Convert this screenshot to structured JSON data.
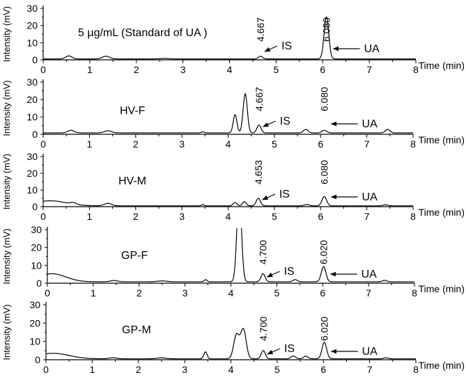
{
  "chart_data": [
    {
      "type": "line",
      "label": "5 µg/mL   (Standard of UA )",
      "ylabel": "Intensity (mV)",
      "xlabel": "Time (min)",
      "xlim": [
        0,
        8
      ],
      "ylim": [
        0,
        30
      ],
      "x_ticks": [
        "0",
        "1",
        "2",
        "3",
        "4",
        "5",
        "6",
        "7",
        "8"
      ],
      "y_ticks": [
        "0",
        "10",
        "20",
        "30"
      ],
      "peak_annotations": [
        {
          "text": "4.667",
          "x": 4.667
        },
        {
          "text": "6.080",
          "x": 6.08
        }
      ],
      "arrow_labels": [
        {
          "text": "IS",
          "x": 4.667
        },
        {
          "text": "UA",
          "x": 6.08
        }
      ],
      "baseline": 0.5,
      "peaks": [
        {
          "x": 0.55,
          "y": 1.8,
          "w": 0.07
        },
        {
          "x": 1.35,
          "y": 1.6,
          "w": 0.08
        },
        {
          "x": 2.6,
          "y": 0.3,
          "w": 0.1
        },
        {
          "x": 4.667,
          "y": 1.6,
          "w": 0.045
        },
        {
          "x": 6.08,
          "y": 24.5,
          "w": 0.05
        }
      ]
    },
    {
      "type": "line",
      "label": "HV-F",
      "ylabel": "Intensity (mV)",
      "xlabel": "Time (min)",
      "xlim": [
        0,
        8
      ],
      "ylim": [
        0,
        30
      ],
      "x_ticks": [
        "0",
        "1",
        "2",
        "3",
        "4",
        "5",
        "6",
        "7",
        "8"
      ],
      "y_ticks": [
        "0",
        "10",
        "20",
        "30"
      ],
      "peak_annotations": [
        {
          "text": "4.667",
          "x": 4.667
        },
        {
          "text": "6.080",
          "x": 6.08
        }
      ],
      "arrow_labels": [
        {
          "text": "IS",
          "x": 4.667
        },
        {
          "text": "UA",
          "x": 6.08
        }
      ],
      "baseline": 0.8,
      "peaks": [
        {
          "x": 0.6,
          "y": 1.5,
          "w": 0.07
        },
        {
          "x": 1.4,
          "y": 1.2,
          "w": 0.08
        },
        {
          "x": 3.45,
          "y": 0.6,
          "w": 0.03
        },
        {
          "x": 4.15,
          "y": 10.5,
          "w": 0.04
        },
        {
          "x": 4.37,
          "y": 22.5,
          "w": 0.045
        },
        {
          "x": 4.667,
          "y": 4.5,
          "w": 0.045
        },
        {
          "x": 5.68,
          "y": 2.0,
          "w": 0.05
        },
        {
          "x": 6.08,
          "y": 1.5,
          "w": 0.05
        },
        {
          "x": 7.45,
          "y": 2.0,
          "w": 0.05
        }
      ]
    },
    {
      "type": "line",
      "label": "HV-M",
      "ylabel": "Intensity (mV)",
      "xlabel": "Time (min)",
      "xlim": [
        0,
        8
      ],
      "ylim": [
        0,
        30
      ],
      "x_ticks": [
        "0",
        "1",
        "2",
        "3",
        "4",
        "5",
        "6",
        "7",
        "8"
      ],
      "y_ticks": [
        "0",
        "10",
        "20",
        "30"
      ],
      "peak_annotations": [
        {
          "text": "4.653",
          "x": 4.653
        },
        {
          "text": "6.080",
          "x": 6.08
        }
      ],
      "arrow_labels": [
        {
          "text": "IS",
          "x": 4.653
        },
        {
          "text": "UA",
          "x": 6.08
        }
      ],
      "baseline": 0.5,
      "peaks": [
        {
          "x": 0.15,
          "y": 3.0,
          "w": 0.35
        },
        {
          "x": 0.65,
          "y": 1.0,
          "w": 0.06
        },
        {
          "x": 1.4,
          "y": 1.5,
          "w": 0.08
        },
        {
          "x": 3.45,
          "y": 0.7,
          "w": 0.03
        },
        {
          "x": 4.15,
          "y": 2.0,
          "w": 0.04
        },
        {
          "x": 4.35,
          "y": 2.5,
          "w": 0.04
        },
        {
          "x": 4.653,
          "y": 4.5,
          "w": 0.045
        },
        {
          "x": 5.7,
          "y": 0.8,
          "w": 0.05
        },
        {
          "x": 6.08,
          "y": 5.5,
          "w": 0.05
        },
        {
          "x": 7.4,
          "y": 0.6,
          "w": 0.05
        }
      ]
    },
    {
      "type": "line",
      "label": "GP-F",
      "ylabel": "Intensity (mV)",
      "xlabel": "Time (min)",
      "xlim": [
        0,
        8
      ],
      "ylim": [
        0,
        30
      ],
      "x_ticks": [
        "0",
        "1",
        "2",
        "3",
        "4",
        "5",
        "6",
        "7",
        "8"
      ],
      "y_ticks": [
        "0",
        "10",
        "20",
        "30"
      ],
      "peak_annotations": [
        {
          "text": "4.700",
          "x": 4.7
        },
        {
          "text": "6.020",
          "x": 6.02
        }
      ],
      "arrow_labels": [
        {
          "text": "IS",
          "x": 4.7
        },
        {
          "text": "UA",
          "x": 6.02
        }
      ],
      "baseline": 0.8,
      "peaks": [
        {
          "x": 0.1,
          "y": 4.5,
          "w": 0.3
        },
        {
          "x": 1.45,
          "y": 0.7,
          "w": 0.08
        },
        {
          "x": 2.5,
          "y": 0.5,
          "w": 0.1
        },
        {
          "x": 3.45,
          "y": 1.2,
          "w": 0.03
        },
        {
          "x": 4.18,
          "y": 50,
          "w": 0.05
        },
        {
          "x": 4.7,
          "y": 4.5,
          "w": 0.045
        },
        {
          "x": 5.4,
          "y": 1.2,
          "w": 0.05
        },
        {
          "x": 6.02,
          "y": 8.5,
          "w": 0.05
        },
        {
          "x": 7.35,
          "y": 0.8,
          "w": 0.05
        }
      ]
    },
    {
      "type": "line",
      "label": "GP-M",
      "ylabel": "Intensity (mV)",
      "xlabel": "Time (min)",
      "xlim": [
        0,
        8
      ],
      "ylim": [
        0,
        30
      ],
      "x_ticks": [
        "0",
        "1",
        "2",
        "3",
        "4",
        "5",
        "6",
        "7",
        "8"
      ],
      "y_ticks": [
        "0",
        "10",
        "20",
        "30"
      ],
      "peak_annotations": [
        {
          "text": "4.700",
          "x": 4.7
        },
        {
          "text": "6.020",
          "x": 6.02
        }
      ],
      "arrow_labels": [
        {
          "text": "IS",
          "x": 4.7
        },
        {
          "text": "UA",
          "x": 6.02
        }
      ],
      "baseline": 0.5,
      "peaks": [
        {
          "x": 0.15,
          "y": 3.0,
          "w": 0.35
        },
        {
          "x": 1.45,
          "y": 0.6,
          "w": 0.08
        },
        {
          "x": 2.5,
          "y": 0.5,
          "w": 0.1
        },
        {
          "x": 3.45,
          "y": 3.8,
          "w": 0.035
        },
        {
          "x": 4.12,
          "y": 13.0,
          "w": 0.06
        },
        {
          "x": 4.27,
          "y": 16.0,
          "w": 0.06
        },
        {
          "x": 4.7,
          "y": 4.5,
          "w": 0.045
        },
        {
          "x": 5.35,
          "y": 1.5,
          "w": 0.05
        },
        {
          "x": 5.62,
          "y": 1.4,
          "w": 0.05
        },
        {
          "x": 6.02,
          "y": 9.0,
          "w": 0.05
        },
        {
          "x": 7.35,
          "y": 0.6,
          "w": 0.05
        }
      ]
    }
  ]
}
